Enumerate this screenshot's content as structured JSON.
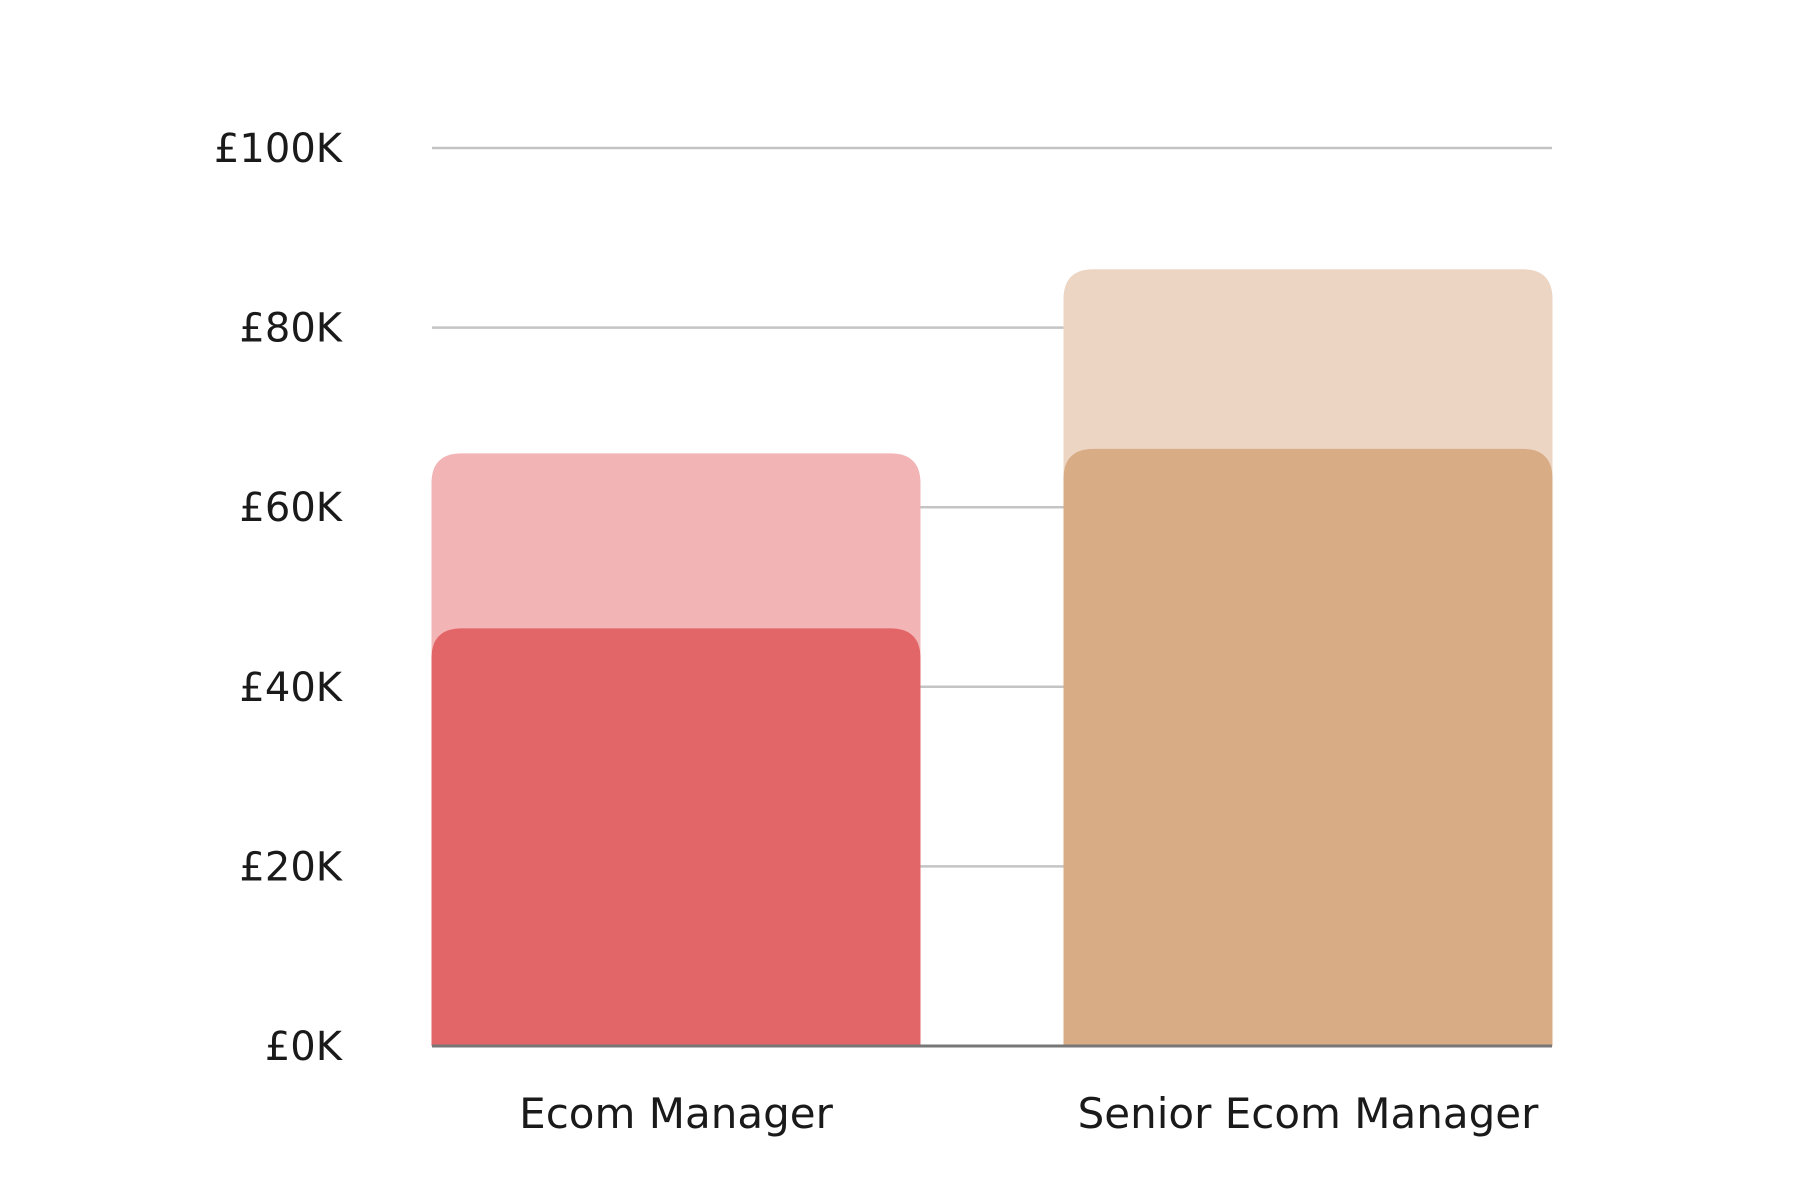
{
  "chart_data": {
    "type": "bar",
    "categories": [
      "Ecom Manager",
      "Senior Ecom Manager"
    ],
    "ranges": [
      {
        "category": "Ecom Manager",
        "low": 46500,
        "high": 66000
      },
      {
        "category": "Senior Ecom Manager",
        "low": 66500,
        "high": 86500
      }
    ],
    "y_ticks": [
      {
        "value": 0,
        "label": "£0K"
      },
      {
        "value": 20000,
        "label": "£20K"
      },
      {
        "value": 40000,
        "label": "£40K"
      },
      {
        "value": 60000,
        "label": "£60K"
      },
      {
        "value": 80000,
        "label": "£80K"
      },
      {
        "value": 100000,
        "label": "£100K"
      }
    ],
    "ylim": [
      0,
      100000
    ],
    "grid": true,
    "title": "",
    "xlabel": "",
    "ylabel": "",
    "colors": {
      "Ecom Manager": {
        "low": "#e26668",
        "high": "#f3b4b5"
      },
      "Senior Ecom Manager": {
        "low": "#d8ac85",
        "high": "#edd5c4"
      }
    }
  }
}
